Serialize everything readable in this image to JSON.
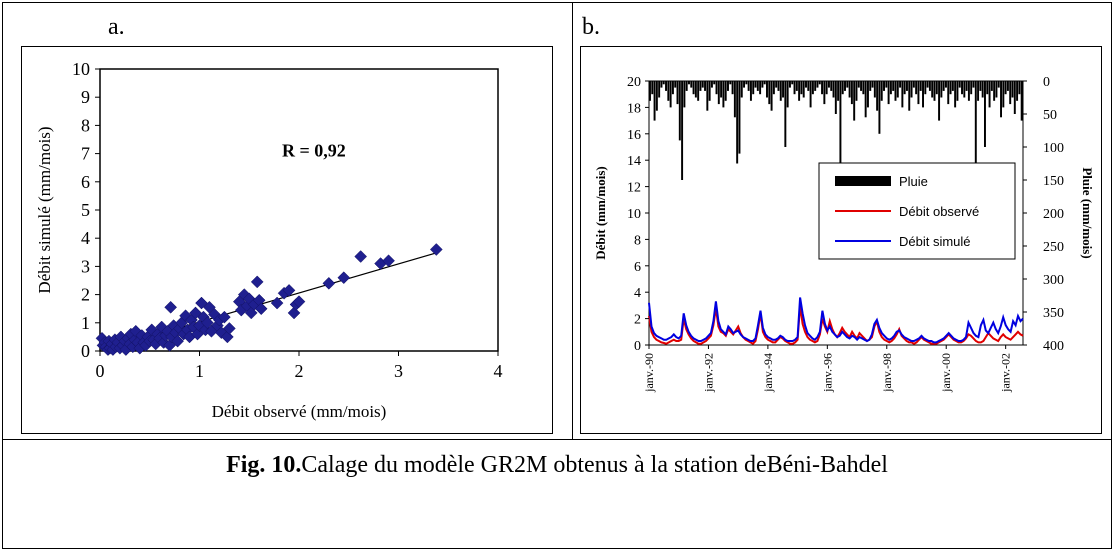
{
  "panel_a_label": "a.",
  "panel_b_label": "b.",
  "caption": {
    "prefix": "Fig. 10.",
    "text": "Calage du modèle GR2M obtenus à la station deBéni-Bahdel"
  },
  "chart_data": [
    {
      "type": "scatter",
      "xlabel": "Débit observé (mm/mois)",
      "ylabel": "Débit simulé (mm/mois)",
      "xlim": [
        0,
        4
      ],
      "ylim": [
        0,
        10
      ],
      "xticks": [
        "0",
        "1",
        "2",
        "3",
        "4"
      ],
      "yticks": [
        "0",
        "1",
        "2",
        "3",
        "4",
        "5",
        "6",
        "7",
        "8",
        "9",
        "10"
      ],
      "annotation": "R = 0,92",
      "trendline": {
        "x": [
          0.05,
          3.4
        ],
        "y": [
          0.05,
          3.5
        ]
      },
      "marker_color": "#1f1f8f",
      "points": [
        [
          0.02,
          0.45
        ],
        [
          0.03,
          0.2
        ],
        [
          0.05,
          0.3
        ],
        [
          0.06,
          0.15
        ],
        [
          0.08,
          0.05
        ],
        [
          0.09,
          0.35
        ],
        [
          0.1,
          0.1
        ],
        [
          0.12,
          0.25
        ],
        [
          0.13,
          0.05
        ],
        [
          0.15,
          0.4
        ],
        [
          0.16,
          0.15
        ],
        [
          0.18,
          0.3
        ],
        [
          0.2,
          0.1
        ],
        [
          0.21,
          0.5
        ],
        [
          0.23,
          0.2
        ],
        [
          0.25,
          0.35
        ],
        [
          0.26,
          0.05
        ],
        [
          0.28,
          0.45
        ],
        [
          0.3,
          0.25
        ],
        [
          0.31,
          0.6
        ],
        [
          0.33,
          0.15
        ],
        [
          0.35,
          0.4
        ],
        [
          0.36,
          0.7
        ],
        [
          0.38,
          0.3
        ],
        [
          0.4,
          0.1
        ],
        [
          0.42,
          0.55
        ],
        [
          0.44,
          0.3
        ],
        [
          0.46,
          0.2
        ],
        [
          0.48,
          0.5
        ],
        [
          0.5,
          0.35
        ],
        [
          0.52,
          0.75
        ],
        [
          0.54,
          0.4
        ],
        [
          0.56,
          0.25
        ],
        [
          0.58,
          0.6
        ],
        [
          0.6,
          0.45
        ],
        [
          0.62,
          0.85
        ],
        [
          0.64,
          0.3
        ],
        [
          0.66,
          0.55
        ],
        [
          0.68,
          0.7
        ],
        [
          0.7,
          0.2
        ],
        [
          0.71,
          1.55
        ],
        [
          0.72,
          0.5
        ],
        [
          0.74,
          0.9
        ],
        [
          0.76,
          0.65
        ],
        [
          0.78,
          0.35
        ],
        [
          0.8,
          0.8
        ],
        [
          0.82,
          1.0
        ],
        [
          0.84,
          0.6
        ],
        [
          0.86,
          1.25
        ],
        [
          0.88,
          0.75
        ],
        [
          0.9,
          0.5
        ],
        [
          0.92,
          1.1
        ],
        [
          0.94,
          0.85
        ],
        [
          0.96,
          1.35
        ],
        [
          0.98,
          0.6
        ],
        [
          1.0,
          0.9
        ],
        [
          1.02,
          1.7
        ],
        [
          1.04,
          1.2
        ],
        [
          1.06,
          0.75
        ],
        [
          1.08,
          1.0
        ],
        [
          1.1,
          1.55
        ],
        [
          1.12,
          0.7
        ],
        [
          1.15,
          1.3
        ],
        [
          1.18,
          0.9
        ],
        [
          1.2,
          1.1
        ],
        [
          1.22,
          0.65
        ],
        [
          1.25,
          1.2
        ],
        [
          1.28,
          0.5
        ],
        [
          1.3,
          0.8
        ],
        [
          1.4,
          1.75
        ],
        [
          1.42,
          1.45
        ],
        [
          1.45,
          2.0
        ],
        [
          1.48,
          1.6
        ],
        [
          1.5,
          1.85
        ],
        [
          1.52,
          1.35
        ],
        [
          1.55,
          1.65
        ],
        [
          1.58,
          2.45
        ],
        [
          1.6,
          1.8
        ],
        [
          1.62,
          1.5
        ],
        [
          1.78,
          1.7
        ],
        [
          1.85,
          2.05
        ],
        [
          1.9,
          2.15
        ],
        [
          1.95,
          1.35
        ],
        [
          1.97,
          1.65
        ],
        [
          2.0,
          1.75
        ],
        [
          2.3,
          2.4
        ],
        [
          2.45,
          2.6
        ],
        [
          2.62,
          3.35
        ],
        [
          2.82,
          3.1
        ],
        [
          2.9,
          3.2
        ],
        [
          3.38,
          3.6
        ]
      ]
    },
    {
      "type": "line",
      "x_tick_labels": [
        "janv.-90",
        "janv.-92",
        "janv.-94",
        "janv.-96",
        "janv.-98",
        "janv.-00",
        "janv.-02"
      ],
      "ylabel": "Débit (mm/mois)",
      "ylim": [
        0,
        20
      ],
      "yticks": [
        "0",
        "2",
        "4",
        "6",
        "8",
        "10",
        "12",
        "14",
        "16",
        "18",
        "20"
      ],
      "y2label": "Pluie (mm/mois)",
      "y2lim": [
        0,
        400
      ],
      "y2_inverted": true,
      "y2ticks": [
        "0",
        "50",
        "100",
        "150",
        "200",
        "250",
        "300",
        "350",
        "400"
      ],
      "legend_position": "center-right",
      "series": [
        {
          "name": "Pluie",
          "kind": "bar",
          "axis": "y2",
          "color": "#000000",
          "values": [
            30,
            20,
            60,
            45,
            25,
            10,
            5,
            15,
            30,
            40,
            20,
            10,
            35,
            90,
            150,
            40,
            15,
            5,
            10,
            20,
            25,
            30,
            15,
            10,
            15,
            45,
            30,
            10,
            5,
            20,
            35,
            25,
            40,
            30,
            15,
            5,
            20,
            55,
            125,
            110,
            25,
            10,
            5,
            15,
            30,
            20,
            10,
            15,
            20,
            10,
            5,
            25,
            35,
            45,
            20,
            10,
            15,
            30,
            25,
            100,
            40,
            10,
            5,
            20,
            15,
            30,
            20,
            25,
            10,
            15,
            40,
            20,
            15,
            10,
            5,
            20,
            35,
            20,
            10,
            15,
            25,
            50,
            30,
            220,
            20,
            15,
            10,
            25,
            35,
            60,
            30,
            10,
            15,
            20,
            55,
            40,
            15,
            10,
            25,
            45,
            80,
            30,
            15,
            10,
            35,
            20,
            15,
            30,
            25,
            10,
            40,
            20,
            15,
            45,
            25,
            10,
            20,
            35,
            15,
            40,
            20,
            10,
            15,
            25,
            30,
            20,
            60,
            25,
            15,
            10,
            35,
            20,
            15,
            40,
            30,
            10,
            20,
            25,
            15,
            30,
            20,
            10,
            150,
            30,
            15,
            25,
            100,
            20,
            40,
            15,
            30,
            25,
            10,
            55,
            40,
            20,
            15,
            35,
            25,
            50,
            30,
            20,
            60
          ]
        },
        {
          "name": "Débit observé",
          "kind": "line",
          "axis": "y",
          "color": "#e00000",
          "values": [
            2.2,
            1.0,
            0.6,
            0.4,
            0.3,
            0.2,
            0.15,
            0.1,
            0.2,
            0.3,
            0.4,
            0.3,
            0.3,
            0.4,
            2.0,
            1.2,
            0.8,
            0.5,
            0.3,
            0.2,
            0.1,
            0.1,
            0.2,
            0.3,
            0.5,
            0.7,
            1.5,
            2.8,
            1.4,
            1.0,
            0.9,
            0.7,
            1.2,
            1.0,
            0.8,
            1.1,
            1.4,
            0.9,
            0.6,
            0.4,
            0.3,
            0.2,
            0.1,
            0.3,
            1.2,
            2.4,
            1.0,
            0.6,
            0.4,
            0.3,
            0.2,
            0.2,
            0.4,
            0.6,
            0.5,
            0.3,
            0.2,
            0.1,
            0.1,
            0.2,
            0.4,
            3.0,
            1.6,
            1.0,
            0.6,
            0.4,
            0.3,
            0.2,
            0.3,
            0.8,
            2.0,
            1.4,
            1.0,
            1.8,
            1.2,
            0.8,
            0.6,
            0.9,
            1.3,
            1.0,
            0.8,
            0.6,
            1.0,
            0.7,
            0.5,
            0.9,
            0.7,
            0.5,
            0.3,
            0.4,
            0.6,
            1.4,
            1.8,
            1.0,
            0.6,
            0.4,
            0.3,
            0.2,
            0.3,
            0.5,
            0.8,
            1.2,
            0.7,
            0.5,
            0.3,
            0.2,
            0.2,
            0.1,
            0.2,
            0.4,
            0.6,
            0.4,
            0.3,
            0.2,
            0.1,
            0.1,
            0.1,
            0.2,
            0.3,
            0.4,
            0.6,
            0.8,
            0.6,
            0.4,
            0.3,
            0.2,
            0.2,
            0.3,
            0.5,
            0.8,
            0.7,
            0.5,
            0.3,
            0.2,
            0.2,
            0.3,
            0.6,
            0.9,
            0.7,
            0.5,
            0.4,
            0.3,
            0.6,
            0.8,
            0.6,
            0.5,
            0.4,
            0.6,
            0.8,
            1.0,
            0.8,
            0.7
          ]
        },
        {
          "name": "Débit simulé",
          "kind": "line",
          "axis": "y",
          "color": "#0000e0",
          "values": [
            3.2,
            1.4,
            0.9,
            0.7,
            0.6,
            0.5,
            0.4,
            0.4,
            0.5,
            0.6,
            0.8,
            0.6,
            0.5,
            0.7,
            2.4,
            1.5,
            1.0,
            0.7,
            0.5,
            0.4,
            0.3,
            0.3,
            0.4,
            0.5,
            0.7,
            0.9,
            1.8,
            3.3,
            1.8,
            1.2,
            1.0,
            0.8,
            1.4,
            1.2,
            0.9,
            1.0,
            1.1,
            0.8,
            0.6,
            0.5,
            0.4,
            0.3,
            0.3,
            0.5,
            1.5,
            2.6,
            1.3,
            0.8,
            0.6,
            0.5,
            0.4,
            0.4,
            0.5,
            0.7,
            0.6,
            0.4,
            0.3,
            0.3,
            0.3,
            0.4,
            0.6,
            3.6,
            2.4,
            1.5,
            0.9,
            0.7,
            0.5,
            0.4,
            0.6,
            1.0,
            2.6,
            1.6,
            1.1,
            1.4,
            1.0,
            0.8,
            0.6,
            0.7,
            1.0,
            0.8,
            0.6,
            0.5,
            0.7,
            0.6,
            0.4,
            0.6,
            0.5,
            0.4,
            0.3,
            0.4,
            0.8,
            1.6,
            1.9,
            1.3,
            0.9,
            0.7,
            0.5,
            0.4,
            0.5,
            0.7,
            1.0,
            1.1,
            0.8,
            0.6,
            0.5,
            0.4,
            0.3,
            0.3,
            0.4,
            0.5,
            0.7,
            0.5,
            0.4,
            0.3,
            0.3,
            0.2,
            0.2,
            0.3,
            0.4,
            0.5,
            0.7,
            0.9,
            0.7,
            0.5,
            0.4,
            0.3,
            0.3,
            0.4,
            0.6,
            1.7,
            1.3,
            0.9,
            0.7,
            0.6,
            1.5,
            1.9,
            1.1,
            0.9,
            1.3,
            1.7,
            1.2,
            0.9,
            1.4,
            2.1,
            1.5,
            1.2,
            1.0,
            1.8,
            1.5,
            2.2,
            1.8,
            2.0
          ]
        }
      ]
    }
  ]
}
